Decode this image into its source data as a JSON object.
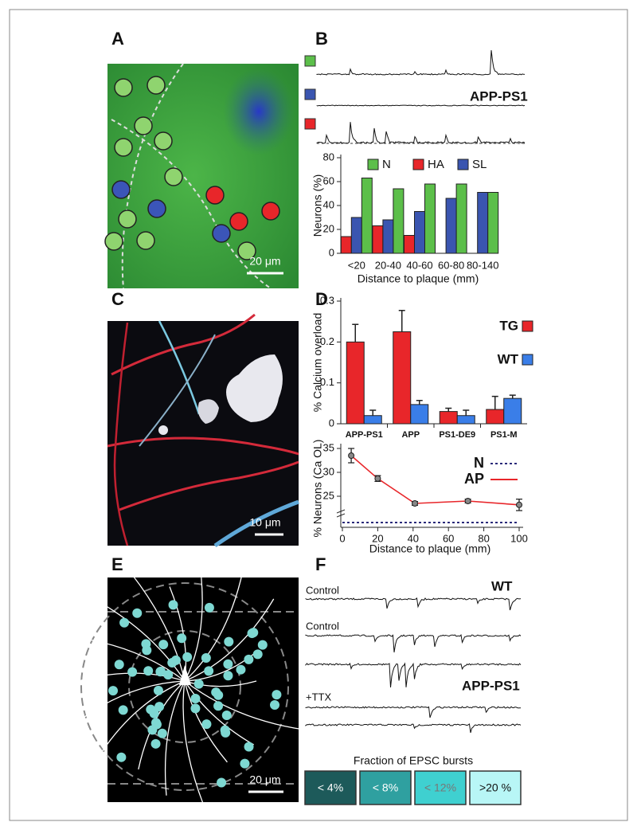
{
  "panel_labels": [
    "A",
    "B",
    "C",
    "D",
    "E",
    "F"
  ],
  "panel_a": {
    "scale_bar": "20 μm"
  },
  "panel_b": {
    "trace_label": "APP-PS1"
  },
  "panel_c": {
    "scale_bar": "10 μm"
  },
  "panel_e": {
    "scale_bar": "20 μm"
  },
  "panel_f": {
    "labels": [
      "Control",
      "WT",
      "Control",
      "APP-PS1",
      "+TTX"
    ],
    "legend_title": "Fraction of EPSC bursts",
    "legend_items": [
      "< 4%",
      "< 8%",
      "< 12%",
      ">20 %"
    ]
  },
  "chart_data": [
    {
      "type": "bar",
      "x_label": "Distance to plaque (mm)",
      "y_label": "Neurons (%)",
      "categories": [
        "<20",
        "20-40",
        "40-60",
        "60-80",
        "80-140"
      ],
      "series": [
        {
          "name": "HA",
          "color": "#e8262a",
          "values": [
            14,
            23,
            15,
            0,
            0
          ]
        },
        {
          "name": "SL",
          "color": "#3a55b0",
          "values": [
            30,
            28,
            35,
            46,
            51
          ]
        },
        {
          "name": "N",
          "color": "#5cbf4a",
          "values": [
            63,
            54,
            58,
            58,
            51
          ]
        }
      ],
      "ylim": [
        0,
        80
      ],
      "yticks": [
        0,
        20,
        40,
        60,
        80
      ]
    },
    {
      "type": "bar",
      "y_label": "% Calcium overload",
      "categories": [
        "APP-PS1",
        "APP",
        "PS1-DE9",
        "PS1-M"
      ],
      "series": [
        {
          "name": "TG",
          "color": "#e8262a",
          "values": [
            0.2,
            0.225,
            0.03,
            0.035
          ],
          "errors": [
            0.043,
            0.052,
            0.008,
            0.032
          ]
        },
        {
          "name": "WT",
          "color": "#3a7ee8",
          "values": [
            0.02,
            0.047,
            0.02,
            0.062
          ],
          "errors": [
            0.013,
            0.01,
            0.013,
            0.008
          ]
        }
      ],
      "ylim": [
        0,
        0.3
      ],
      "yticks": [
        0,
        0.1,
        0.2,
        0.3
      ]
    },
    {
      "type": "line",
      "x_label": "Distance to plaque (mm)",
      "y_label": "% Neurons (Ca OL)",
      "series": [
        {
          "name": "N",
          "color": "#2a2a7a",
          "dash": true,
          "x": [
            0,
            100
          ],
          "values": [
            19.5,
            19.5
          ]
        },
        {
          "name": "AP",
          "color": "#e8262a",
          "x": [
            5,
            20,
            41,
            71,
            100
          ],
          "values": [
            33.5,
            28.7,
            23.5,
            24,
            23.2
          ],
          "errors": [
            1.5,
            0.6,
            0.4,
            0.4,
            1.2
          ]
        }
      ],
      "xlim": [
        0,
        100
      ],
      "xticks": [
        0,
        20,
        40,
        60,
        80,
        100
      ],
      "ylim": [
        19,
        36
      ],
      "yticks": [
        25,
        30,
        35
      ]
    }
  ]
}
